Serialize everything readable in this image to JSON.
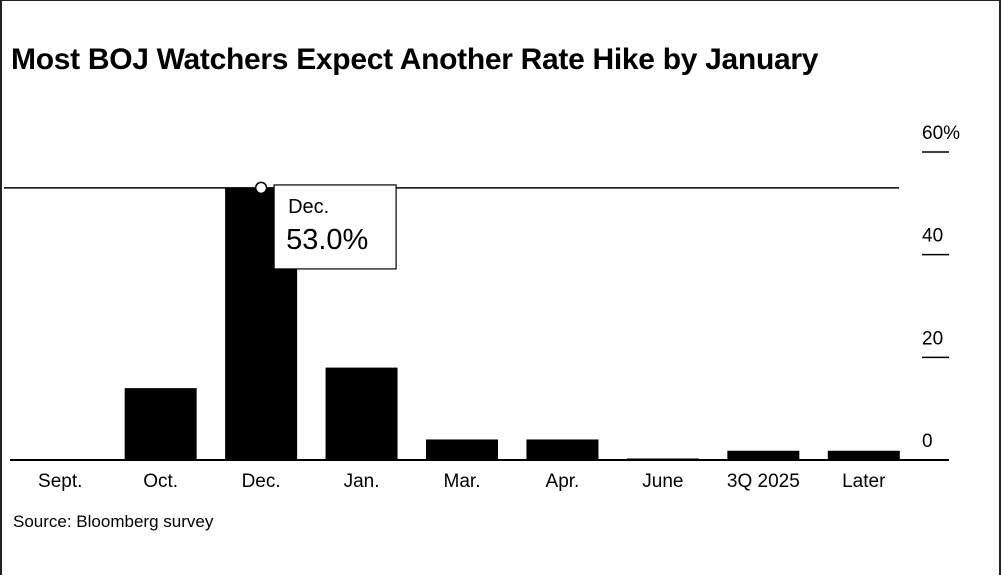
{
  "chart_data": {
    "type": "bar",
    "title": "Most BOJ Watchers Expect Another Rate Hike by January",
    "categories": [
      "Sept.",
      "Oct.",
      "Dec.",
      "Jan.",
      "Mar.",
      "Apr.",
      "June",
      "3Q 2025",
      "Later"
    ],
    "values": [
      0,
      14,
      53,
      18,
      4,
      4,
      0.3,
      1.8,
      1.8
    ],
    "ylim": [
      0,
      60
    ],
    "yticks": [
      0,
      20,
      40,
      60
    ],
    "ytick_labels": [
      "0",
      "20",
      "40",
      "60%"
    ],
    "y_axis_position": "right",
    "grid": false,
    "bar_color": "#000000",
    "highlight": {
      "category": "Dec.",
      "value_label": "53.0%"
    }
  },
  "source": "Source: Bloomberg survey"
}
